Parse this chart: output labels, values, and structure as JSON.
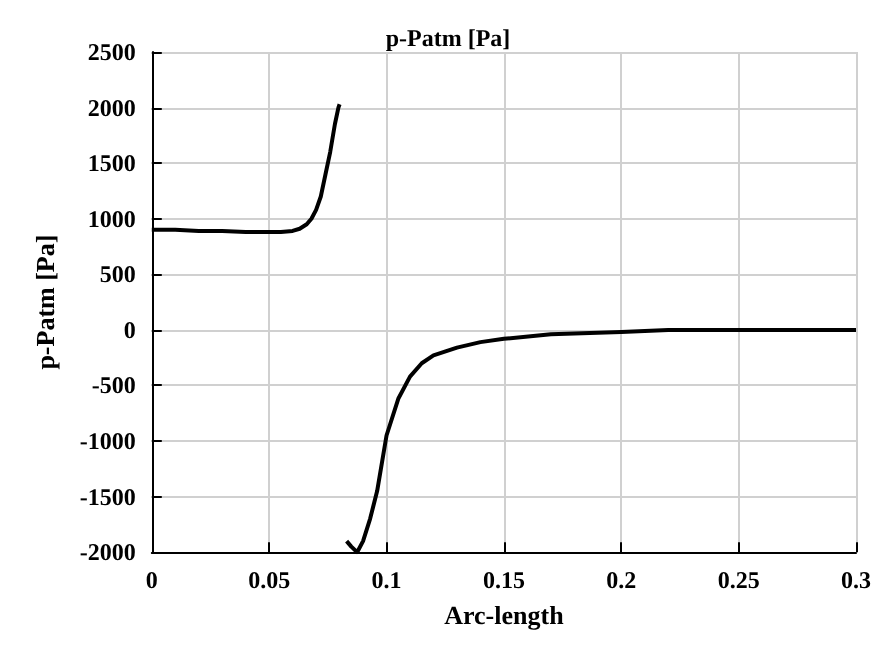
{
  "chart_data": {
    "type": "line",
    "title": "p-Patm [Pa]",
    "xlabel": "Arc-length",
    "ylabel": "p-Patm [Pa]",
    "x": [
      0,
      0.01,
      0.02,
      0.03,
      0.04,
      0.05,
      0.055,
      0.06,
      0.063,
      0.066,
      0.068,
      0.07,
      0.072,
      0.074,
      0.076,
      0.078,
      0.0795,
      0.08,
      0.081,
      0.083,
      0.085,
      0.0875,
      0.09,
      0.093,
      0.096,
      0.1,
      0.105,
      0.11,
      0.115,
      0.12,
      0.13,
      0.14,
      0.15,
      0.17,
      0.2,
      0.22,
      0.25,
      0.27,
      0.3
    ],
    "series": [
      {
        "color": "#000000",
        "values": [
          900,
          900,
          890,
          890,
          880,
          880,
          880,
          890,
          910,
          950,
          1000,
          1080,
          1200,
          1400,
          1600,
          1850,
          2000,
          2030,
          null,
          -1900,
          -1950,
          -2000,
          -1900,
          -1700,
          -1450,
          -950,
          -620,
          -420,
          -300,
          -230,
          -160,
          -110,
          -80,
          -40,
          -20,
          0,
          0,
          0,
          0
        ]
      }
    ],
    "xlim": [
      0,
      0.3
    ],
    "xticks": [
      0,
      0.05,
      0.1,
      0.15,
      0.2,
      0.25,
      0.3
    ],
    "ylim": [
      -2000,
      2500
    ],
    "yticks": [
      -2000,
      -1500,
      -1000,
      -500,
      0,
      500,
      1000,
      1500,
      2000,
      2500
    ],
    "grid": true,
    "marker": "none",
    "line_style": "solid"
  }
}
